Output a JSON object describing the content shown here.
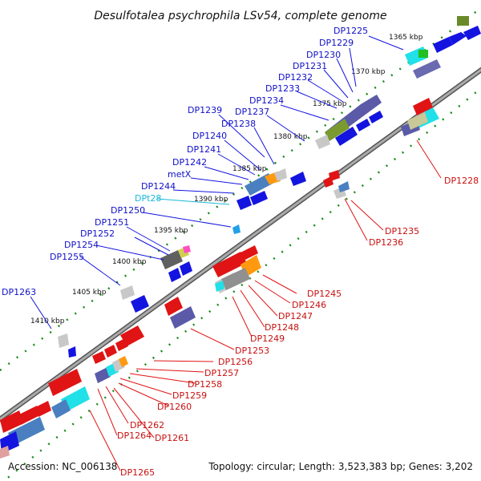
{
  "title": "Desulfotalea psychrophila LSv54, complete genome",
  "footer": {
    "accession": "Accession: NC_006138",
    "info": "Topology: circular; Length: 3,523,383 bp; Genes: 3,202"
  },
  "kbp_ticks": [
    "1365 kbp",
    "1370 kbp",
    "1375 kbp",
    "1380 kbp",
    "1385 kbp",
    "1390 kbp",
    "1395 kbp",
    "1400 kbp",
    "1405 kbp",
    "1410 kbp"
  ],
  "upper_labels": [
    {
      "text": "DP1225",
      "color": "#1010c8"
    },
    {
      "text": "DP1229",
      "color": "#1010c8"
    },
    {
      "text": "DP1230",
      "color": "#1010c8"
    },
    {
      "text": "DP1231",
      "color": "#1010c8"
    },
    {
      "text": "DP1232",
      "color": "#1010c8"
    },
    {
      "text": "DP1233",
      "color": "#1010c8"
    },
    {
      "text": "DP1234",
      "color": "#1010c8"
    },
    {
      "text": "DP1237",
      "color": "#1010c8"
    },
    {
      "text": "DP1239",
      "color": "#1010c8"
    },
    {
      "text": "DP1238",
      "color": "#1010c8"
    },
    {
      "text": "DP1240",
      "color": "#1010c8"
    },
    {
      "text": "DP1241",
      "color": "#1010c8"
    },
    {
      "text": "DP1242",
      "color": "#1010c8"
    },
    {
      "text": "metX",
      "color": "#1010c8"
    },
    {
      "text": "DP1244",
      "color": "#1010c8"
    },
    {
      "text": "DPt28",
      "color": "#18b8d8"
    },
    {
      "text": "DP1250",
      "color": "#1010c8"
    },
    {
      "text": "DP1251",
      "color": "#1010c8"
    },
    {
      "text": "DP1252",
      "color": "#1010c8"
    },
    {
      "text": "DP1254",
      "color": "#1010c8"
    },
    {
      "text": "DP1255",
      "color": "#1010c8"
    },
    {
      "text": "DP1263",
      "color": "#1010c8"
    }
  ],
  "lower_labels": [
    {
      "text": "DP1228",
      "color": "#c81010"
    },
    {
      "text": "DP1235",
      "color": "#c81010"
    },
    {
      "text": "DP1236",
      "color": "#c81010"
    },
    {
      "text": "DP1245",
      "color": "#c81010"
    },
    {
      "text": "DP1246",
      "color": "#c81010"
    },
    {
      "text": "DP1247",
      "color": "#c81010"
    },
    {
      "text": "DP1248",
      "color": "#c81010"
    },
    {
      "text": "DP1249",
      "color": "#c81010"
    },
    {
      "text": "DP1253",
      "color": "#c81010"
    },
    {
      "text": "DP1256",
      "color": "#c81010"
    },
    {
      "text": "DP1257",
      "color": "#c81010"
    },
    {
      "text": "DP1258",
      "color": "#c81010"
    },
    {
      "text": "DP1259",
      "color": "#c81010"
    },
    {
      "text": "DP1260",
      "color": "#c81010"
    },
    {
      "text": "DP1262",
      "color": "#c81010"
    },
    {
      "text": "DP1264",
      "color": "#c81010"
    },
    {
      "text": "DP1261",
      "color": "#c81010"
    },
    {
      "text": "DP1265",
      "color": "#c81010"
    }
  ],
  "colors": {
    "forward_gene": "#1414e0",
    "reverse_gene": "#e01414",
    "backbone": "#888888",
    "ruler_dots": "#1a8a1a"
  }
}
